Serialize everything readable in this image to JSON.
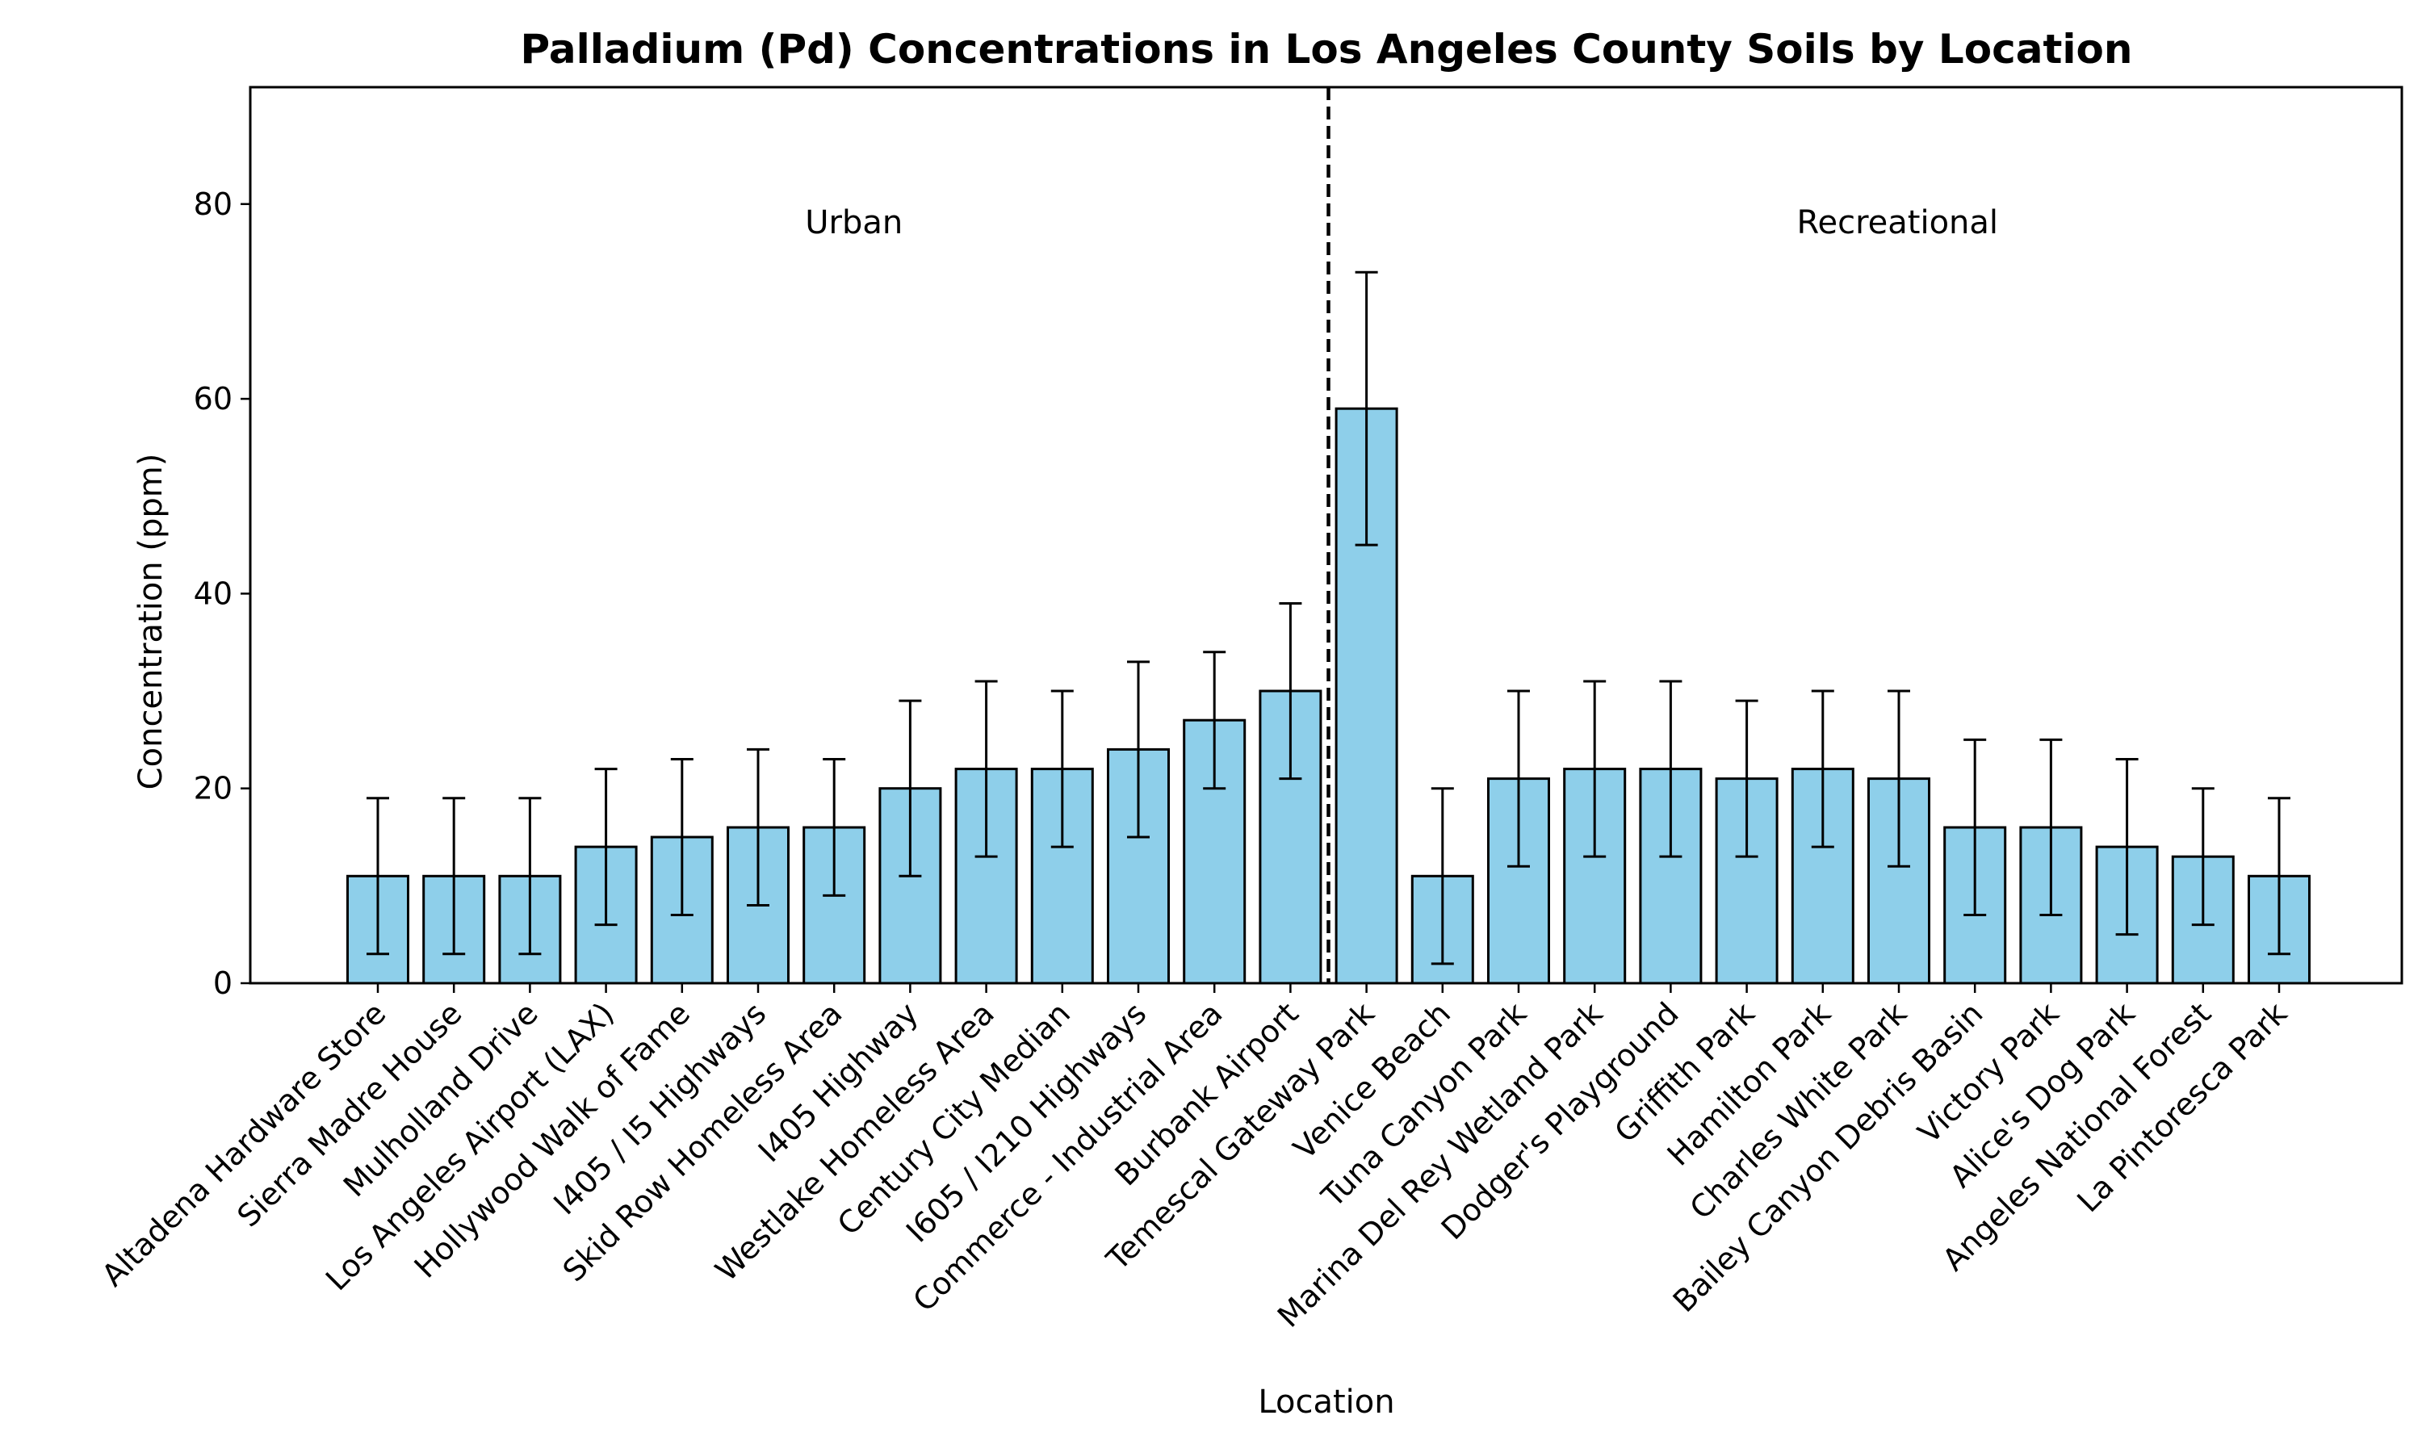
{
  "chart_data": {
    "type": "bar",
    "title": "Palladium (Pd) Concentrations in Los Angeles County Soils by Location",
    "xlabel": "Location",
    "ylabel": "Concentration (ppm)",
    "ylim": [
      0,
      92
    ],
    "yticks": [
      0,
      20,
      40,
      60,
      80
    ],
    "bar_color": "#8ecfea",
    "bar_edge_color": "#000000",
    "grid": false,
    "categories": [
      "Altadena Hardware Store",
      "Sierra Madre House",
      "Mulholland Drive",
      "Los Angeles Airport (LAX)",
      "Hollywood Walk of Fame",
      "I405 / I5 Highways",
      "Skid Row Homeless Area",
      "I405 Highway",
      "Westlake Homeless Area",
      "Century City Median",
      "I605 / I210 Highways",
      "Commerce - Industrial Area",
      "Burbank Airport",
      "Temescal Gateway Park",
      "Venice Beach",
      "Tuna Canyon Park",
      "Marina Del Rey Wetland Park",
      "Dodger's Playground",
      "Griffith Park",
      "Hamilton Park",
      "Charles White Park",
      "Bailey Canyon Debris Basin",
      "Victory Park",
      "Alice's Dog Park",
      "Angeles National Forest",
      "La Pintoresca Park"
    ],
    "values": [
      11,
      11,
      11,
      14,
      15,
      16,
      16,
      20,
      22,
      22,
      24,
      27,
      30,
      59,
      11,
      21,
      22,
      22,
      21,
      22,
      21,
      16,
      16,
      14,
      13,
      11
    ],
    "errors": [
      8,
      8,
      8,
      8,
      8,
      8,
      7,
      9,
      9,
      8,
      9,
      7,
      9,
      14,
      9,
      9,
      9,
      9,
      8,
      8,
      9,
      9,
      9,
      9,
      7,
      8
    ],
    "groups": [
      {
        "label": "Urban",
        "count": 13
      },
      {
        "label": "Recreational",
        "count": 13
      }
    ]
  }
}
